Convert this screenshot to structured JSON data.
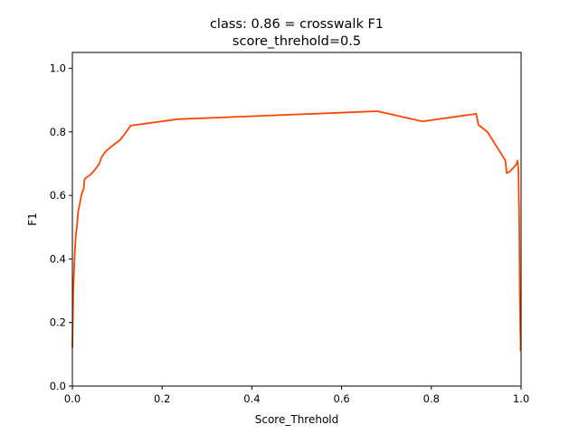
{
  "chart_data": {
    "type": "line",
    "title": "class: 0.86 = crosswalk F1",
    "subtitle": "score_threhold=0.5",
    "xlabel": "Score_Threhold",
    "ylabel": "F1",
    "xlim": [
      0.0,
      1.0
    ],
    "ylim": [
      0.0,
      1.05
    ],
    "xticks": [
      "0.0",
      "0.2",
      "0.4",
      "0.6",
      "0.8",
      "1.0"
    ],
    "yticks": [
      "0.0",
      "0.2",
      "0.4",
      "0.6",
      "0.8",
      "1.0"
    ],
    "grid": false,
    "legend": false,
    "series": [
      {
        "color": "#ff4500",
        "x": [
          0.0,
          0.002,
          0.005,
          0.008,
          0.01,
          0.013,
          0.016,
          0.02,
          0.022,
          0.025,
          0.027,
          0.03,
          0.035,
          0.04,
          0.05,
          0.06,
          0.065,
          0.075,
          0.09,
          0.105,
          0.115,
          0.13,
          0.235,
          0.68,
          0.78,
          0.9,
          0.905,
          0.925,
          0.965,
          0.968,
          0.975,
          0.985,
          0.99,
          0.992,
          0.994,
          0.996,
          0.997,
          0.998,
          0.999
        ],
        "y": [
          0.12,
          0.3,
          0.41,
          0.48,
          0.5,
          0.55,
          0.57,
          0.6,
          0.61,
          0.62,
          0.65,
          0.655,
          0.66,
          0.665,
          0.68,
          0.7,
          0.72,
          0.74,
          0.757,
          0.773,
          0.79,
          0.82,
          0.84,
          0.865,
          0.833,
          0.857,
          0.822,
          0.8,
          0.71,
          0.67,
          0.675,
          0.69,
          0.7,
          0.71,
          0.68,
          0.5,
          0.3,
          0.2,
          0.11
        ]
      }
    ]
  }
}
